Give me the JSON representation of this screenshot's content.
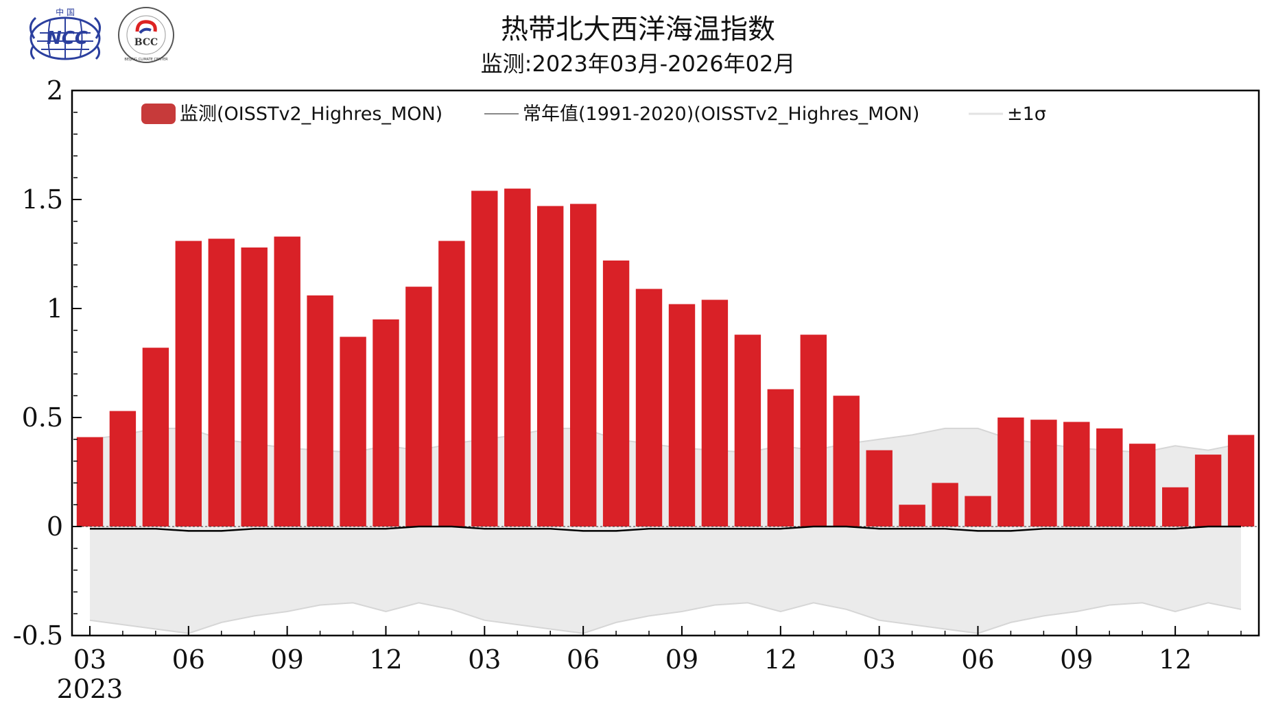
{
  "title": "热带北大西洋海温指数",
  "subtitle": "监测:2023年03月-2026年02月",
  "logos": [
    {
      "name": "NCC",
      "text": "NCC",
      "top_text": "中  国"
    },
    {
      "name": "BCC",
      "text": "BCC",
      "ring_text": "BEIJING CLIMATE CENTER"
    }
  ],
  "colors": {
    "bar": "#d92127",
    "legend_bar": "#c73a3a",
    "normal_line": "#000000",
    "band": "#ebebeb",
    "band_edge": "#d6d6d6"
  },
  "chart_data": {
    "type": "bar",
    "title": "热带北大西洋海温指数",
    "ylim": [
      -0.5,
      2
    ],
    "y_ticks": [
      -0.5,
      0,
      0.5,
      1,
      1.5,
      2
    ],
    "y_tick_labels": [
      "-0.5",
      "0",
      "0.5",
      "1",
      "1.5",
      "2"
    ],
    "x_tick_labels": [
      "03",
      "06",
      "09",
      "12",
      "03",
      "06",
      "09",
      "12",
      "03",
      "06",
      "09",
      "12"
    ],
    "x_tick_months": [
      "2023-03",
      "2023-06",
      "2023-09",
      "2023-12",
      "2024-03",
      "2024-06",
      "2024-09",
      "2024-12",
      "2025-03",
      "2025-06",
      "2025-09",
      "2025-12"
    ],
    "x_year_label": "2023",
    "legend": {
      "monitor": "监测(OISSTv2_Highres_MON)",
      "normal": "常年值(1991-2020)(OISSTv2_Highres_MON)",
      "sigma": "±1σ"
    },
    "months": [
      "2023-03",
      "2023-04",
      "2023-05",
      "2023-06",
      "2023-07",
      "2023-08",
      "2023-09",
      "2023-10",
      "2023-11",
      "2023-12",
      "2024-01",
      "2024-02",
      "2024-03",
      "2024-04",
      "2024-05",
      "2024-06",
      "2024-07",
      "2024-08",
      "2024-09",
      "2024-10",
      "2024-11",
      "2024-12",
      "2025-01",
      "2025-02",
      "2025-03",
      "2025-04",
      "2025-05",
      "2025-06",
      "2025-07",
      "2025-08",
      "2025-09",
      "2025-10",
      "2025-11",
      "2025-12",
      "2026-01",
      "2026-02"
    ],
    "series": [
      {
        "name": "监测(OISSTv2_Highres_MON)",
        "values": [
          0.41,
          0.53,
          0.82,
          1.31,
          1.32,
          1.28,
          1.33,
          1.06,
          0.87,
          0.95,
          1.1,
          1.31,
          1.54,
          1.55,
          1.47,
          1.48,
          1.22,
          1.09,
          1.02,
          1.04,
          0.88,
          0.63,
          0.88,
          0.6,
          0.35,
          0.1,
          0.2,
          0.14,
          0.5,
          0.49,
          0.48,
          0.45,
          0.38,
          0.18,
          0.33,
          0.42
        ]
      },
      {
        "name": "常年值(1991-2020)(OISSTv2_Highres_MON)",
        "values": [
          -0.01,
          -0.01,
          -0.01,
          -0.02,
          -0.02,
          -0.01,
          -0.01,
          -0.01,
          -0.01,
          -0.01,
          0.0,
          0.0,
          -0.01,
          -0.01,
          -0.01,
          -0.02,
          -0.02,
          -0.01,
          -0.01,
          -0.01,
          -0.01,
          -0.01,
          0.0,
          0.0,
          -0.01,
          -0.01,
          -0.01,
          -0.02,
          -0.02,
          -0.01,
          -0.01,
          -0.01,
          -0.01,
          -0.01,
          0.0,
          0.0
        ]
      },
      {
        "name": "±1σ upper",
        "values": [
          0.4,
          0.42,
          0.45,
          0.45,
          0.4,
          0.38,
          0.36,
          0.35,
          0.34,
          0.37,
          0.35,
          0.38,
          0.4,
          0.42,
          0.45,
          0.45,
          0.4,
          0.38,
          0.36,
          0.35,
          0.34,
          0.37,
          0.35,
          0.38,
          0.4,
          0.42,
          0.45,
          0.45,
          0.4,
          0.38,
          0.36,
          0.35,
          0.34,
          0.37,
          0.35,
          0.38
        ]
      },
      {
        "name": "±1σ lower",
        "values": [
          -0.43,
          -0.45,
          -0.47,
          -0.49,
          -0.44,
          -0.41,
          -0.39,
          -0.36,
          -0.35,
          -0.39,
          -0.35,
          -0.38,
          -0.43,
          -0.45,
          -0.47,
          -0.49,
          -0.44,
          -0.41,
          -0.39,
          -0.36,
          -0.35,
          -0.39,
          -0.35,
          -0.38,
          -0.43,
          -0.45,
          -0.47,
          -0.49,
          -0.44,
          -0.41,
          -0.39,
          -0.36,
          -0.35,
          -0.39,
          -0.35,
          -0.38
        ]
      }
    ]
  }
}
